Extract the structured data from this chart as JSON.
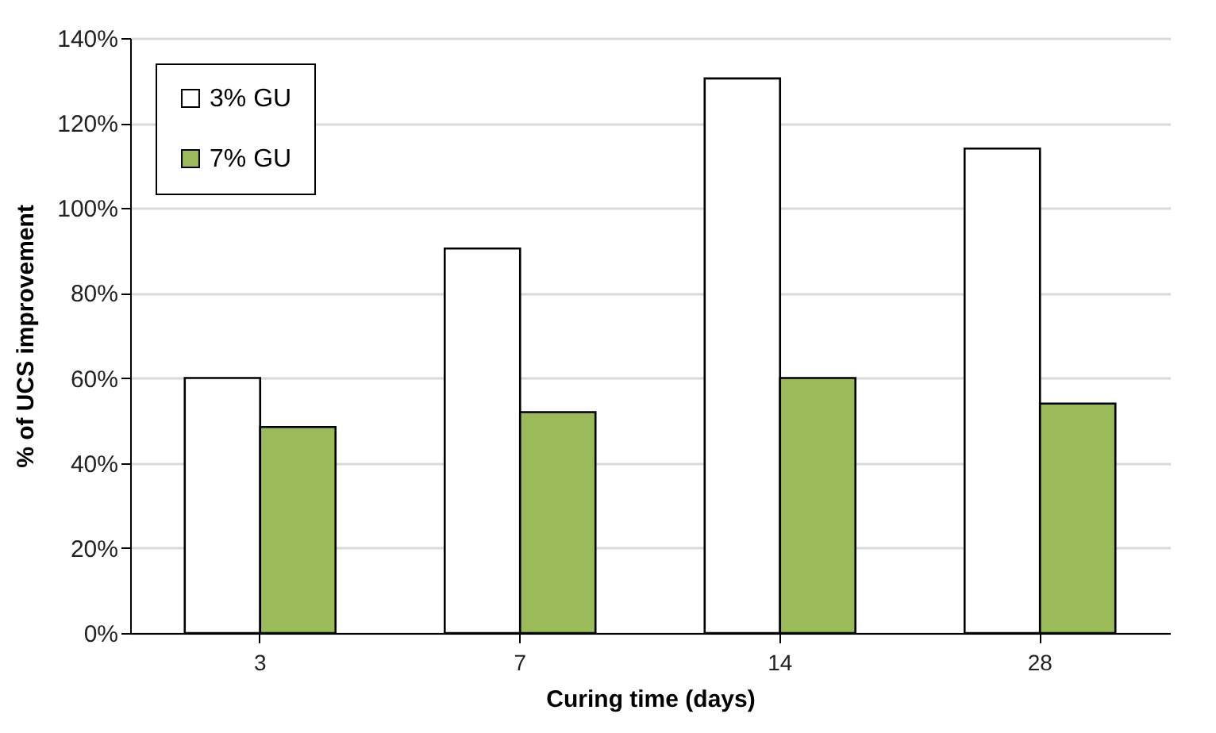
{
  "chart_data": {
    "type": "bar",
    "xlabel": "Curing time (days)",
    "ylabel": "% of UCS improvement",
    "categories": [
      "3",
      "7",
      "14",
      "28"
    ],
    "series": [
      {
        "name": "3% GU",
        "color": "#ffffff",
        "values": [
          60,
          90.5,
          130.5,
          114
        ]
      },
      {
        "name": "7% GU",
        "color": "#9bbb59",
        "values": [
          48.5,
          52,
          60,
          54
        ]
      }
    ],
    "ylim": [
      0,
      140
    ],
    "yticks": [
      {
        "value": 0,
        "label": "0%"
      },
      {
        "value": 20,
        "label": "20%"
      },
      {
        "value": 40,
        "label": "40%"
      },
      {
        "value": 60,
        "label": "60%"
      },
      {
        "value": 80,
        "label": "80%"
      },
      {
        "value": 100,
        "label": "100%"
      },
      {
        "value": 120,
        "label": "120%"
      },
      {
        "value": 140,
        "label": "140%"
      }
    ],
    "grid": "y",
    "legend": "top left"
  }
}
